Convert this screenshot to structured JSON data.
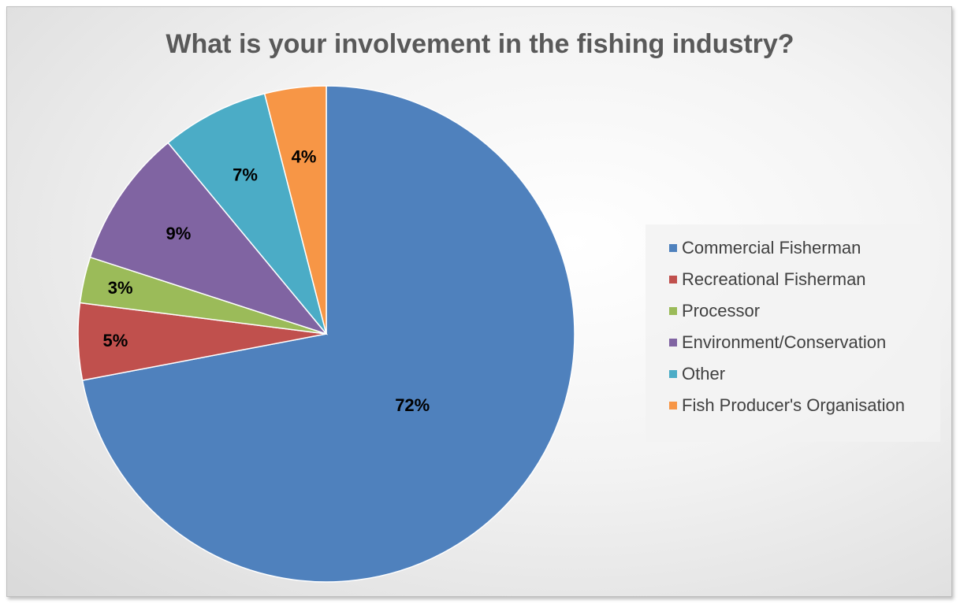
{
  "chart_data": {
    "type": "pie",
    "title": "What is your involvement in the fishing industry?",
    "categories": [
      "Commercial Fisherman",
      "Recreational Fisherman",
      "Processor",
      "Environment/Conservation",
      "Other",
      "Fish Producer's Organisation"
    ],
    "values": [
      72,
      5,
      3,
      9,
      7,
      4
    ],
    "data_labels": [
      "72%",
      "5%",
      "3%",
      "9%",
      "7%",
      "4%"
    ],
    "colors": [
      "#4f81bd",
      "#c0504d",
      "#9bbb59",
      "#8064a2",
      "#4bacc6",
      "#f79646"
    ],
    "legend_position": "right"
  }
}
